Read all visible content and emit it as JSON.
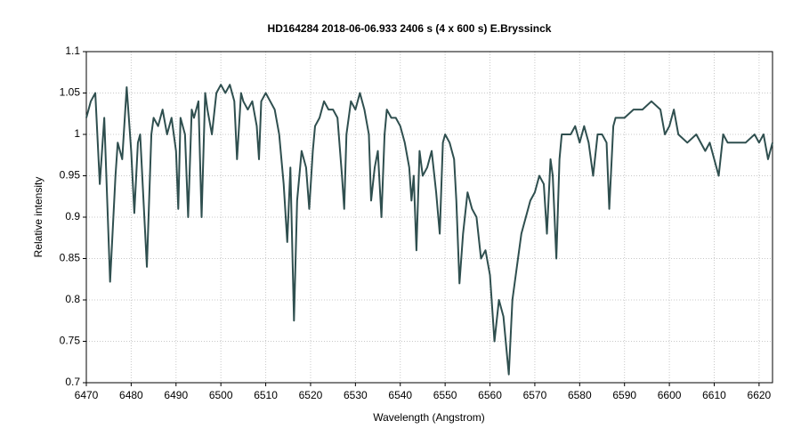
{
  "chart_data": {
    "type": "line",
    "title": "HD164284  2018-06-06.933  2406 s (4 x 600 s)  E.Bryssinck",
    "x_label": "Wavelength (Angstrom)",
    "y_label": "Relative intensity",
    "color": "#2f4f4f",
    "grid": true,
    "xlim": [
      6470,
      6623
    ],
    "ylim": [
      0.7,
      1.1
    ],
    "xticks": [
      6470,
      6480,
      6490,
      6500,
      6510,
      6520,
      6530,
      6540,
      6550,
      6560,
      6570,
      6580,
      6590,
      6600,
      6610,
      6620
    ],
    "yticks": [
      0.7,
      0.75,
      0.8,
      0.85,
      0.9,
      0.95,
      1,
      1.05,
      1.1
    ],
    "x": [
      6470,
      6471,
      6472,
      6473,
      6474,
      6475.3,
      6476.5,
      6477,
      6478,
      6479,
      6480,
      6480.7,
      6481.5,
      6482,
      6483.5,
      6484.5,
      6485,
      6486,
      6487,
      6488,
      6489,
      6490,
      6490.5,
      6491,
      6492,
      6492.7,
      6493.5,
      6494,
      6495,
      6495.7,
      6496.5,
      6497,
      6498,
      6499,
      6500,
      6501,
      6502,
      6503,
      6503.6,
      6504.5,
      6505,
      6506,
      6507,
      6508,
      6508.5,
      6509,
      6510,
      6511,
      6512,
      6513,
      6514,
      6514.8,
      6515.5,
      6516.3,
      6517,
      6518,
      6519,
      6519.7,
      6520.5,
      6521,
      6522,
      6523,
      6524,
      6525,
      6526,
      6527,
      6527.5,
      6528,
      6529,
      6530,
      6531,
      6532,
      6533,
      6533.5,
      6534.3,
      6535,
      6535.8,
      6536.5,
      6537,
      6538,
      6539,
      6540,
      6541,
      6542,
      6542.5,
      6543,
      6543.6,
      6544.3,
      6545,
      6546,
      6547,
      6548,
      6548.8,
      6549.5,
      6550,
      6551,
      6552,
      6552.5,
      6553.2,
      6554,
      6555,
      6556,
      6557,
      6558,
      6559,
      6560,
      6561,
      6562,
      6563,
      6564.2,
      6565,
      6566,
      6567,
      6568,
      6569,
      6570,
      6571,
      6572,
      6572.7,
      6573.5,
      6574,
      6574.8,
      6575.5,
      6576,
      6577,
      6578,
      6579,
      6580,
      6581,
      6582,
      6583,
      6584,
      6585,
      6586,
      6586.6,
      6587.5,
      6588,
      6590,
      6592,
      6594,
      6596,
      6598,
      6599,
      6600,
      6601,
      6602,
      6604,
      6606,
      6608,
      6609,
      6610,
      6611,
      6612,
      6613,
      6615,
      6617,
      6619,
      6620,
      6621,
      6622,
      6623
    ],
    "values": [
      1.02,
      1.04,
      1.05,
      0.94,
      1.02,
      0.822,
      0.95,
      0.99,
      0.97,
      1.057,
      0.98,
      0.905,
      0.99,
      1.0,
      0.84,
      1.0,
      1.02,
      1.01,
      1.03,
      1.0,
      1.02,
      0.98,
      0.91,
      1.02,
      1.0,
      0.9,
      1.03,
      1.02,
      1.04,
      0.9,
      1.05,
      1.03,
      1.0,
      1.05,
      1.06,
      1.05,
      1.06,
      1.04,
      0.97,
      1.05,
      1.04,
      1.03,
      1.04,
      1.01,
      0.97,
      1.04,
      1.05,
      1.04,
      1.03,
      1.0,
      0.94,
      0.87,
      0.96,
      0.775,
      0.92,
      0.98,
      0.96,
      0.91,
      0.98,
      1.01,
      1.02,
      1.04,
      1.03,
      1.03,
      1.02,
      0.95,
      0.91,
      1.0,
      1.04,
      1.03,
      1.05,
      1.03,
      1.0,
      0.92,
      0.96,
      0.98,
      0.9,
      1.0,
      1.03,
      1.02,
      1.02,
      1.01,
      0.99,
      0.96,
      0.92,
      0.95,
      0.86,
      0.98,
      0.95,
      0.96,
      0.98,
      0.93,
      0.88,
      0.99,
      1.0,
      0.99,
      0.97,
      0.92,
      0.82,
      0.88,
      0.93,
      0.91,
      0.9,
      0.85,
      0.86,
      0.83,
      0.75,
      0.8,
      0.78,
      0.71,
      0.8,
      0.84,
      0.88,
      0.9,
      0.92,
      0.93,
      0.95,
      0.94,
      0.88,
      0.97,
      0.95,
      0.85,
      0.97,
      1.0,
      1.0,
      1.0,
      1.01,
      0.99,
      1.01,
      0.99,
      0.95,
      1.0,
      1.0,
      0.99,
      0.91,
      1.01,
      1.02,
      1.02,
      1.03,
      1.03,
      1.04,
      1.03,
      1.0,
      1.01,
      1.03,
      1.0,
      0.99,
      1.0,
      0.98,
      0.99,
      0.97,
      0.95,
      1.0,
      0.99,
      0.99,
      0.99,
      1.0,
      0.99,
      1.0,
      0.97,
      0.99
    ]
  }
}
